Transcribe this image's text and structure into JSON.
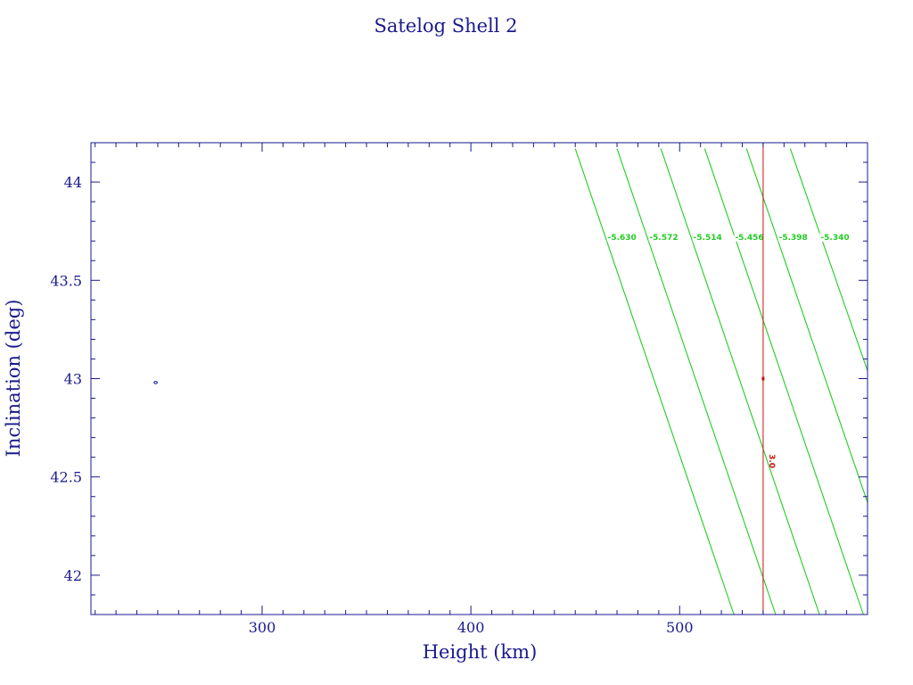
{
  "chart_data": {
    "type": "line",
    "title": "Satelog Shell 2",
    "xlabel": "Height (km)",
    "ylabel": "Inclination (deg)",
    "xlim": [
      218,
      590
    ],
    "ylim": [
      41.8,
      44.2
    ],
    "x_ticks": [
      300,
      400,
      500
    ],
    "y_ticks": [
      42,
      42.5,
      43,
      43.5,
      44
    ],
    "x_tick_labels": [
      "300",
      "400",
      "500"
    ],
    "y_tick_labels": [
      "42",
      "42.5",
      "43",
      "43.5",
      "44"
    ],
    "grid": false,
    "colors": {
      "frame": "#1a1a8c",
      "contours": "#22cc22",
      "marker": "#cc1111"
    },
    "series": [
      {
        "name": "-5.630",
        "x": [
          450,
          526
        ],
        "y": [
          44.17,
          41.8
        ],
        "label_x": 472,
        "label_y": 43.72
      },
      {
        "name": "-5.572",
        "x": [
          470,
          546
        ],
        "y": [
          44.17,
          41.8
        ],
        "label_x": 492,
        "label_y": 43.72
      },
      {
        "name": "-5.514",
        "x": [
          491,
          567
        ],
        "y": [
          44.17,
          41.8
        ],
        "label_x": 513,
        "label_y": 43.72
      },
      {
        "name": "-5.456",
        "x": [
          512,
          588
        ],
        "y": [
          44.17,
          41.8
        ],
        "label_x": 533,
        "label_y": 43.72
      },
      {
        "name": "-5.398",
        "x": [
          532,
          590
        ],
        "y": [
          44.17,
          42.37
        ],
        "label_x": 554,
        "label_y": 43.72
      },
      {
        "name": "-5.340",
        "x": [
          553,
          590
        ],
        "y": [
          44.17,
          43.04
        ],
        "label_x": 574,
        "label_y": 43.72
      }
    ],
    "vertical_marker": {
      "x": 540,
      "y_range": [
        41.8,
        44.2
      ]
    },
    "red_contour": {
      "label": "3.0",
      "x": 540,
      "y": 43.0,
      "label_x": 543,
      "label_y": 42.58
    },
    "extra_point": {
      "x": 249,
      "y": 42.98
    }
  }
}
